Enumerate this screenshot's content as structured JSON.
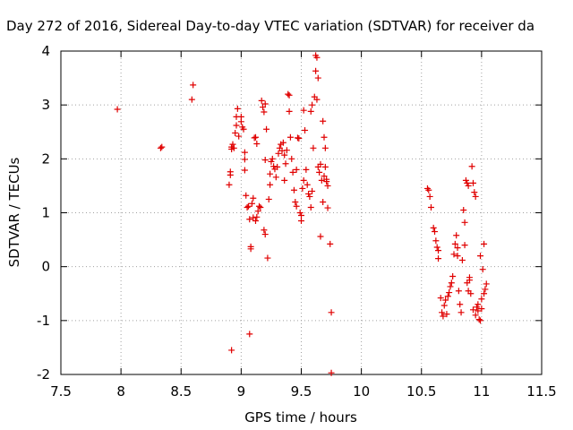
{
  "chart_data": {
    "type": "scatter",
    "title": "Day 272 of 2016, Sidereal Day-to-day VTEC variation (SDTVAR) for receiver da",
    "xlabel": "GPS time / hours",
    "ylabel": "SDTVAR / TECUs",
    "xlim": [
      7.5,
      11.5
    ],
    "ylim": [
      -2,
      4
    ],
    "xticks": [
      7.5,
      8,
      8.5,
      9,
      9.5,
      10,
      10.5,
      11,
      11.5
    ],
    "xtick_labels": [
      "7.5",
      "8",
      "8.5",
      "9",
      "9.5",
      "10",
      "10.5",
      "11",
      "11.5"
    ],
    "yticks": [
      -2,
      -1,
      0,
      1,
      2,
      3,
      4
    ],
    "ytick_labels": [
      "-2",
      "-1",
      "0",
      "1",
      "2",
      "3",
      "4"
    ],
    "grid": true,
    "marker": "plus",
    "color": "#e00000",
    "points": [
      [
        7.97,
        2.92
      ],
      [
        8.33,
        2.2
      ],
      [
        8.34,
        2.22
      ],
      [
        8.6,
        3.37
      ],
      [
        8.59,
        3.1
      ],
      [
        8.9,
        1.52
      ],
      [
        8.91,
        1.7
      ],
      [
        8.91,
        1.76
      ],
      [
        8.92,
        2.22
      ],
      [
        8.92,
        2.18
      ],
      [
        8.93,
        2.27
      ],
      [
        8.94,
        2.2
      ],
      [
        8.95,
        2.48
      ],
      [
        8.96,
        2.62
      ],
      [
        8.96,
        2.78
      ],
      [
        8.97,
        2.93
      ],
      [
        8.98,
        2.42
      ],
      [
        9.0,
        2.69
      ],
      [
        9.0,
        2.78
      ],
      [
        9.01,
        2.59
      ],
      [
        9.02,
        2.55
      ],
      [
        9.03,
        2.12
      ],
      [
        9.03,
        1.99
      ],
      [
        9.03,
        1.79
      ],
      [
        9.04,
        1.32
      ],
      [
        9.05,
        1.1
      ],
      [
        9.06,
        1.12
      ],
      [
        9.07,
        0.88
      ],
      [
        9.08,
        0.37
      ],
      [
        9.08,
        0.33
      ],
      [
        9.09,
        1.17
      ],
      [
        9.1,
        1.27
      ],
      [
        9.1,
        0.91
      ],
      [
        8.92,
        -1.55
      ],
      [
        9.07,
        -1.25
      ],
      [
        9.11,
        2.39
      ],
      [
        9.12,
        2.4
      ],
      [
        9.13,
        2.28
      ],
      [
        9.12,
        0.85
      ],
      [
        9.13,
        0.92
      ],
      [
        9.14,
        1.03
      ],
      [
        9.15,
        1.12
      ],
      [
        9.16,
        1.1
      ],
      [
        9.17,
        3.08
      ],
      [
        9.18,
        2.96
      ],
      [
        9.19,
        2.87
      ],
      [
        9.2,
        3.02
      ],
      [
        9.21,
        2.55
      ],
      [
        9.2,
        1.98
      ],
      [
        9.19,
        0.68
      ],
      [
        9.2,
        0.6
      ],
      [
        9.22,
        0.16
      ],
      [
        9.23,
        1.25
      ],
      [
        9.24,
        1.52
      ],
      [
        9.24,
        1.72
      ],
      [
        9.25,
        1.95
      ],
      [
        9.26,
        2.0
      ],
      [
        9.27,
        1.86
      ],
      [
        9.28,
        1.81
      ],
      [
        9.29,
        1.66
      ],
      [
        9.3,
        1.85
      ],
      [
        9.31,
        2.1
      ],
      [
        9.32,
        2.2
      ],
      [
        9.33,
        2.27
      ],
      [
        9.34,
        2.15
      ],
      [
        9.35,
        2.3
      ],
      [
        9.36,
        2.07
      ],
      [
        9.37,
        1.91
      ],
      [
        9.38,
        2.16
      ],
      [
        9.39,
        3.2
      ],
      [
        9.4,
        3.18
      ],
      [
        9.4,
        2.88
      ],
      [
        9.41,
        2.4
      ],
      [
        9.42,
        2.0
      ],
      [
        9.43,
        1.75
      ],
      [
        9.44,
        1.42
      ],
      [
        9.45,
        1.2
      ],
      [
        9.46,
        1.12
      ],
      [
        9.47,
        2.39
      ],
      [
        9.48,
        2.38
      ],
      [
        9.49,
        1.0
      ],
      [
        9.5,
        0.95
      ],
      [
        9.5,
        0.85
      ],
      [
        9.51,
        1.45
      ],
      [
        9.52,
        1.6
      ],
      [
        9.52,
        2.9
      ],
      [
        9.53,
        2.53
      ],
      [
        9.54,
        1.8
      ],
      [
        9.55,
        1.52
      ],
      [
        9.56,
        1.35
      ],
      [
        9.57,
        1.3
      ],
      [
        9.58,
        1.1
      ],
      [
        9.58,
        2.88
      ],
      [
        9.59,
        3.0
      ],
      [
        9.6,
        2.2
      ],
      [
        9.61,
        3.15
      ],
      [
        9.62,
        3.63
      ],
      [
        9.62,
        3.92
      ],
      [
        9.63,
        3.88
      ],
      [
        9.64,
        3.5
      ],
      [
        9.64,
        1.85
      ],
      [
        9.65,
        1.75
      ],
      [
        9.66,
        1.9
      ],
      [
        9.66,
        0.56
      ],
      [
        9.67,
        1.6
      ],
      [
        9.68,
        2.7
      ],
      [
        9.69,
        2.4
      ],
      [
        9.7,
        2.2
      ],
      [
        9.7,
        1.85
      ],
      [
        9.71,
        1.62
      ],
      [
        9.72,
        1.5
      ],
      [
        9.72,
        1.09
      ],
      [
        9.74,
        0.42
      ],
      [
        9.75,
        -0.85
      ],
      [
        9.75,
        -1.97
      ],
      [
        9.63,
        3.1
      ],
      [
        9.46,
        1.8
      ],
      [
        9.36,
        1.6
      ],
      [
        9.59,
        1.4
      ],
      [
        9.69,
        1.68
      ],
      [
        9.71,
        1.58
      ],
      [
        9.68,
        1.2
      ],
      [
        10.55,
        1.45
      ],
      [
        10.56,
        1.42
      ],
      [
        10.57,
        1.3
      ],
      [
        10.58,
        1.1
      ],
      [
        10.6,
        0.72
      ],
      [
        10.61,
        0.65
      ],
      [
        10.62,
        0.48
      ],
      [
        10.63,
        0.36
      ],
      [
        10.64,
        0.3
      ],
      [
        10.64,
        0.15
      ],
      [
        10.66,
        -0.58
      ],
      [
        10.67,
        -0.85
      ],
      [
        10.68,
        -0.92
      ],
      [
        10.69,
        -0.72
      ],
      [
        10.7,
        -0.62
      ],
      [
        10.71,
        -0.88
      ],
      [
        10.72,
        -0.55
      ],
      [
        10.73,
        -0.48
      ],
      [
        10.74,
        -0.37
      ],
      [
        10.75,
        -0.3
      ],
      [
        10.76,
        -0.18
      ],
      [
        10.77,
        0.23
      ],
      [
        10.78,
        0.42
      ],
      [
        10.79,
        0.58
      ],
      [
        10.8,
        0.2
      ],
      [
        10.81,
        -0.45
      ],
      [
        10.82,
        -0.7
      ],
      [
        10.83,
        -0.85
      ],
      [
        10.84,
        0.12
      ],
      [
        10.85,
        1.05
      ],
      [
        10.86,
        0.82
      ],
      [
        10.87,
        1.6
      ],
      [
        10.88,
        1.55
      ],
      [
        10.89,
        1.5
      ],
      [
        10.9,
        -0.25
      ],
      [
        10.91,
        -0.5
      ],
      [
        10.92,
        1.86
      ],
      [
        10.93,
        1.55
      ],
      [
        10.94,
        1.38
      ],
      [
        10.95,
        1.3
      ],
      [
        10.96,
        -0.75
      ],
      [
        10.97,
        -0.82
      ],
      [
        10.98,
        -0.98
      ],
      [
        10.99,
        -1.0
      ],
      [
        11.0,
        -0.78
      ],
      [
        11.01,
        -0.05
      ],
      [
        11.02,
        0.42
      ],
      [
        11.02,
        -0.5
      ],
      [
        11.03,
        -0.42
      ],
      [
        11.04,
        -0.32
      ],
      [
        10.88,
        -0.3
      ],
      [
        10.9,
        -0.2
      ],
      [
        10.95,
        -0.9
      ],
      [
        10.97,
        -0.7
      ],
      [
        10.86,
        0.4
      ],
      [
        10.8,
        0.35
      ],
      [
        10.89,
        -0.45
      ],
      [
        10.99,
        0.2
      ],
      [
        11.0,
        -0.6
      ],
      [
        10.93,
        -0.8
      ]
    ]
  }
}
